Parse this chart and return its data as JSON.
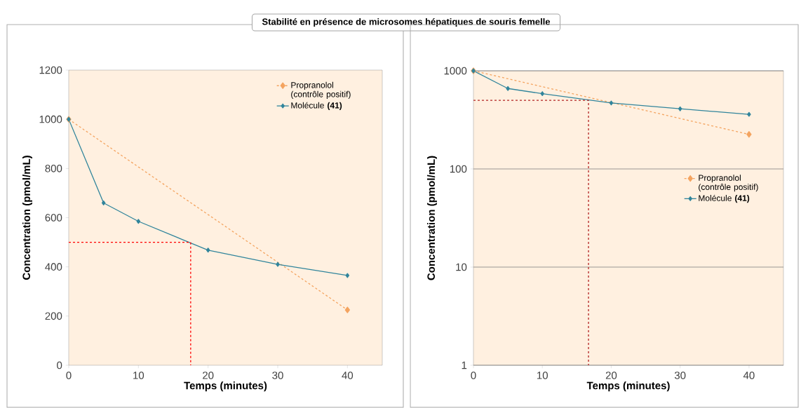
{
  "chart_data": [
    {
      "type": "line",
      "title": "Stabilité en présence de microsomes hépatiques de souris femelle",
      "xlabel": "Temps (minutes)",
      "ylabel": "Concentration (pmol/mL)",
      "xlim": [
        0,
        45
      ],
      "xticks": [
        0,
        10,
        20,
        30,
        40
      ],
      "ylim": [
        0,
        1200
      ],
      "yticks": [
        0,
        200,
        400,
        600,
        800,
        1000,
        1200
      ],
      "grid": false,
      "legend": "top right",
      "marker": "diamond",
      "series": [
        {
          "name": "Propranolol (contrôle positif)",
          "color": "#f4a460",
          "line_style": "dashed",
          "x": [
            0,
            40
          ],
          "values": [
            1000,
            225
          ]
        },
        {
          "name": "Molécule **(41)**",
          "color": "#31859c",
          "line_style": "solid",
          "x": [
            0,
            5,
            10,
            20,
            30,
            40
          ],
          "values": [
            1000,
            660,
            585,
            468,
            410,
            365
          ]
        },
        {
          "type": "line",
          "color": "#ff0000",
          "line_style": "dashed",
          "marker": "none",
          "x": [
            0,
            17.5,
            17.5
          ],
          "values": [
            500,
            500,
            0
          ]
        }
      ]
    },
    {
      "type": "line",
      "xlabel": "Temps (minutes)",
      "ylabel": "Concentration (pmol/mL)",
      "log": "y",
      "xlim": [
        0,
        45
      ],
      "xticks": [
        0,
        10,
        20,
        30,
        40
      ],
      "ylim": [
        1,
        1000
      ],
      "yticks": [
        1,
        10,
        100,
        1000
      ],
      "grid": "y",
      "legend": "right",
      "marker": "diamond",
      "series": [
        {
          "name": "Propranolol (contrôle positif)",
          "color": "#f4a460",
          "line_style": "dashed",
          "x": [
            0,
            40
          ],
          "values": [
            1000,
            225
          ]
        },
        {
          "name": "Molécule **(41)**",
          "color": "#31859c",
          "line_style": "solid",
          "x": [
            0,
            5,
            10,
            20,
            30,
            40
          ],
          "values": [
            1000,
            660,
            585,
            470,
            410,
            360
          ]
        },
        {
          "type": "line",
          "color": "#b22222",
          "line_style": "dashed",
          "marker": "none",
          "x": [
            0,
            16.7,
            16.7
          ],
          "values": [
            500,
            500,
            1
          ]
        }
      ]
    }
  ]
}
